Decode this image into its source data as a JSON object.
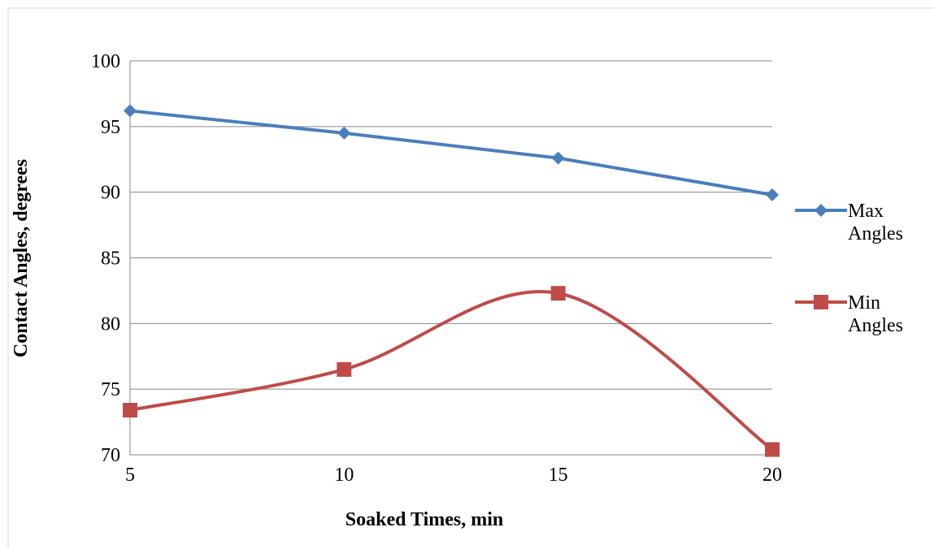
{
  "chart_data": {
    "type": "line",
    "x": [
      5,
      10,
      15,
      20
    ],
    "xlabel": "Soaked Times, min",
    "ylabel": "Contact Angles, degrees",
    "ylim": [
      70,
      100
    ],
    "yticks": [
      70,
      75,
      80,
      85,
      90,
      95,
      100
    ],
    "xticks": [
      5,
      10,
      15,
      20
    ],
    "grid": "horizontal",
    "legend_position": "right",
    "series": [
      {
        "name": "Max Angles",
        "name_lines": [
          "Max",
          "Angles"
        ],
        "values": [
          96.2,
          94.5,
          92.6,
          89.8
        ],
        "color": "#4a7ebb",
        "marker": "diamond",
        "smooth": false
      },
      {
        "name": "Min Angles",
        "name_lines": [
          "Min",
          "Angles"
        ],
        "values": [
          73.4,
          76.5,
          82.3,
          70.4
        ],
        "color": "#be4b48",
        "marker": "square",
        "smooth": true
      }
    ]
  }
}
